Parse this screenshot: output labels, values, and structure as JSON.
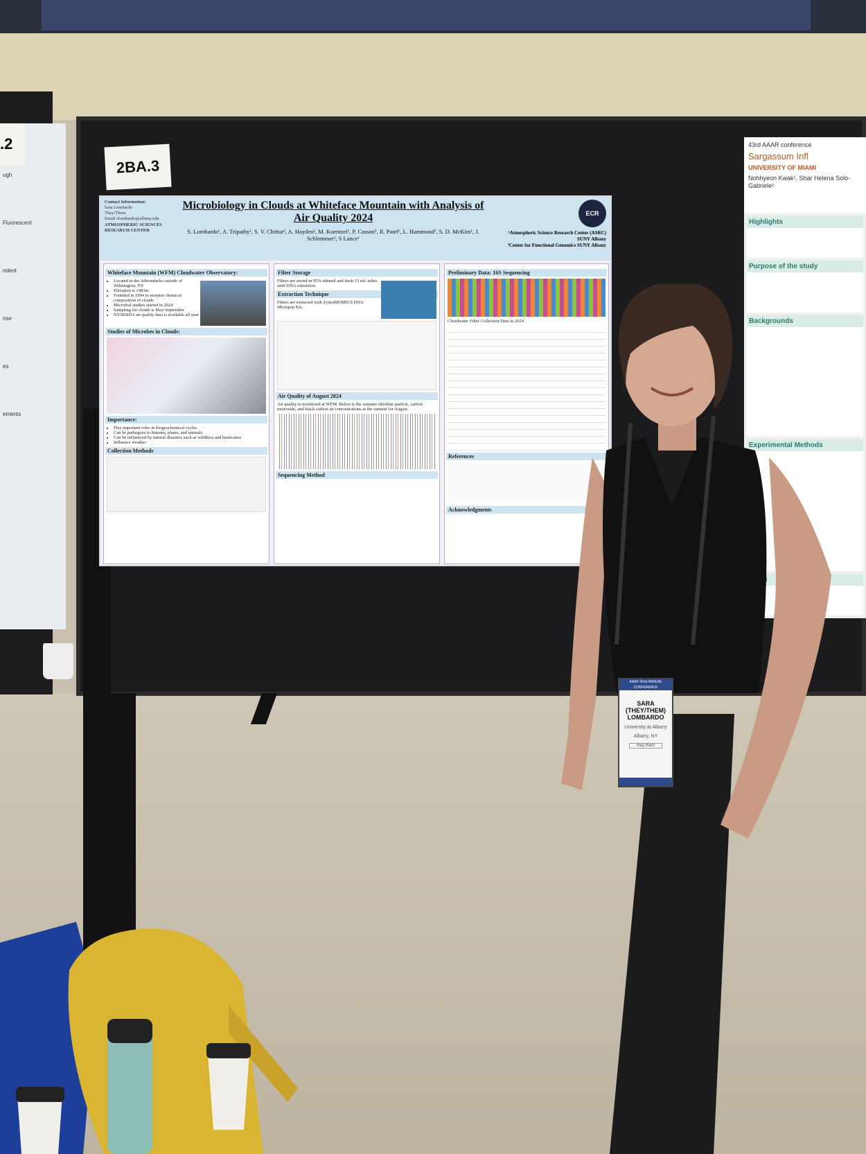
{
  "board_label": "2BA.3",
  "neighbor_label": ".2",
  "left_poster": {
    "fragments": [
      "ugh",
      "Fluorescent",
      "ndent",
      "nse",
      "es",
      "ements"
    ]
  },
  "poster": {
    "title": "Microbiology in Clouds at Whiteface Mountain with Analysis of Air Quality 2024",
    "authors": "S. Lombardo¹, A. Tripathy¹, S. V. Chittur², A. Hayden², M. Kuentzel², P. Casson¹, R. Patel¹, L. Hammond¹, S. D. McKim¹, J. Schlemmer¹, S Lance¹",
    "contact": [
      "Contact Information:",
      "Sara Lombardo",
      "They/Them",
      "Email slombardo@albany.edu",
      "ATMOSPHERIC SCIENCES RESEARCH CENTER"
    ],
    "logo": "ECR",
    "affiliations": [
      "¹Atmospheric Science Research Center (ASRC) SUNY Albany",
      "²Center for Functional Genomics SUNY Albany"
    ],
    "col1": {
      "heading": "Whiteface Mountain (WFM) Cloudwater Observatory:",
      "items": [
        "Located in the Adirondacks outside of Wilmington, NY",
        "Elevation is 1483m",
        "Founded in 1994 to monitor chemical composition of clouds",
        "Microbial studies started in 2024",
        "Sampling for clouds is May-September",
        "NYSERDA air quality data is available all year"
      ],
      "heading2": "Studies of Microbes in Clouds:",
      "heading3": "Importance:",
      "items3": [
        "Play important roles in biogeochemical cycles",
        "Can be pathogens to humans, plants, and animals",
        "Can be influenced by natural disasters such as wildfires and hurricanes",
        "Influence weather"
      ],
      "heading4": "Collection Methods"
    },
    "col2": {
      "heading": "Filter Storage",
      "text": "Filters are stored in 95% ethanol and fresh 15 mL tubes until DNA extraction.",
      "heading2": "Extraction Technique",
      "text2": "Filters are extracted with ZymoBIOMICS DNA Micropep Kit.",
      "heading3": "Air Quality of August 2024",
      "text3": "Air quality is monitored at WFM. Below is the summer ultrafine particle, carbon monoxide, and black carbon air concentrations at the summit for August.",
      "heading4": "Sequencing Method"
    },
    "col3": {
      "heading": "Preliminary Data: 16S Sequencing",
      "text": "Cloudwater Filter Collection Date in 2024",
      "heading2": "References",
      "heading3": "Acknowledgments"
    }
  },
  "right_poster": {
    "conference": "43rd AAAR conference",
    "university": "UNIVERSITY OF MIAMI",
    "title": "Sargassum Infl",
    "authors": "Nohhyeon Kwak¹, Shar Helena Solo-Gabriele²",
    "sections": [
      "Highlights",
      "Purpose of the study",
      "Backgrounds",
      "Experimental Methods",
      "Looki"
    ]
  },
  "badge": {
    "header": "AAAR 42nd ANNUAL CONFERENCE",
    "name": "SARA (THEY/THEM) LOMBARDO",
    "university": "University at Albany",
    "city": "Albany, NY",
    "pronoun": "they them"
  }
}
